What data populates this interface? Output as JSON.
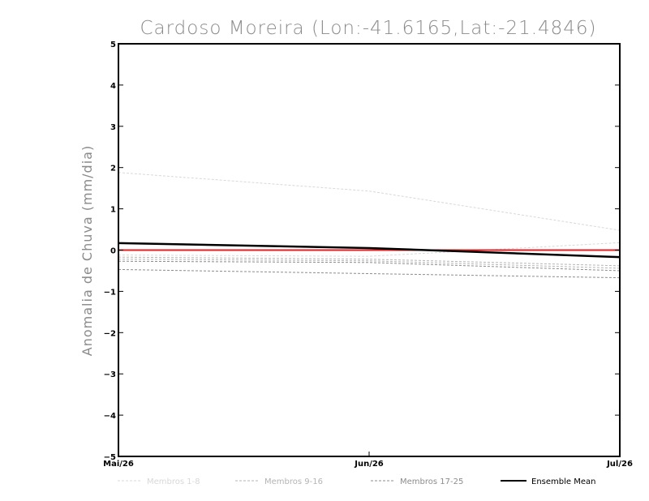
{
  "chart_data": {
    "type": "line",
    "title": "Cardoso Moreira (Lon:-41.6165,Lat:-21.4846)",
    "ylabel": "Anomalia de Chuva (mm/dia)",
    "xlabel": "",
    "categories": [
      "Mai/26",
      "Jun/26",
      "Jul/26"
    ],
    "ylim": [
      -5,
      5
    ],
    "yticks": [
      "5",
      "4",
      "3",
      "2",
      "1",
      "0",
      "-1",
      "-2",
      "-3",
      "-4",
      "-5"
    ],
    "zero_line_color": "#e02020",
    "members": [
      {
        "group": 0,
        "values": [
          1.88,
          1.43,
          0.48
        ]
      },
      {
        "group": 0,
        "values": [
          -0.12,
          -0.15,
          0.18
        ]
      },
      {
        "group": 1,
        "values": [
          -0.17,
          -0.22,
          -0.38
        ]
      },
      {
        "group": 1,
        "values": [
          -0.22,
          -0.26,
          -0.44
        ]
      },
      {
        "group": 2,
        "values": [
          -0.27,
          -0.3,
          -0.5
        ]
      },
      {
        "group": 2,
        "values": [
          -0.47,
          -0.57,
          -0.67
        ]
      }
    ],
    "ensemble_mean": {
      "name": "Ensemble Mean",
      "values": [
        0.17,
        0.05,
        -0.17
      ],
      "color": "#000000"
    },
    "legend": [
      {
        "label": "Membros 1-8",
        "color": "#d8d8d8",
        "dashed": true
      },
      {
        "label": "Membros 9-16",
        "color": "#b4b4b4",
        "dashed": true
      },
      {
        "label": "Membros 17-25",
        "color": "#8c8c8c",
        "dashed": true
      },
      {
        "label": "Ensemble Mean",
        "color": "#000000",
        "dashed": false
      }
    ]
  }
}
